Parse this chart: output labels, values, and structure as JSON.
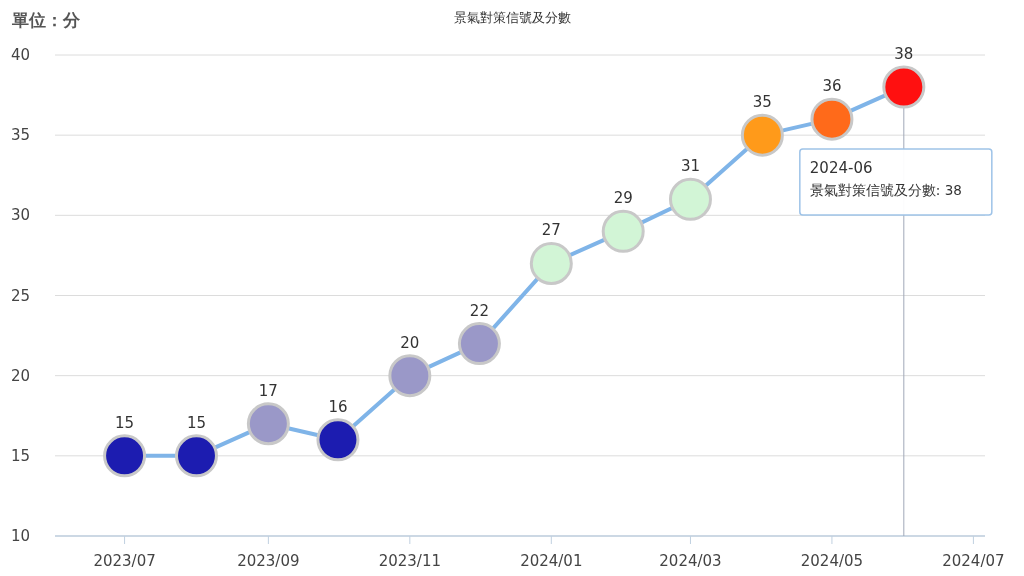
{
  "chart_data": {
    "type": "line",
    "title": "景氣對策信號及分數",
    "ylabel": "單位：分",
    "x": [
      "2023-07",
      "2023-08",
      "2023-09",
      "2023-10",
      "2023-11",
      "2023-12",
      "2024-01",
      "2024-02",
      "2024-03",
      "2024-04",
      "2024-05",
      "2024-06"
    ],
    "series": [
      {
        "color": "#7fb4e8",
        "values": [
          15,
          15,
          17,
          16,
          20,
          22,
          27,
          29,
          31,
          35,
          36,
          38
        ],
        "colors": [
          "#1c1cb0",
          "#1c1cb0",
          "#9a98c8",
          "#1c1cb0",
          "#9a98c8",
          "#9a98c8",
          "#d2f5d6",
          "#d2f5d6",
          "#d2f5d6",
          "#ff9a1a",
          "#ff6a1a",
          "#ff1010"
        ]
      }
    ],
    "xlim": [
      "2023-06",
      "2024-07-06"
    ],
    "xticks": [
      {
        "value": "2023-07",
        "label": "2023/07"
      },
      {
        "value": "2023-09",
        "label": "2023/09"
      },
      {
        "value": "2023-11",
        "label": "2023/11"
      },
      {
        "value": "2024-01",
        "label": "2024/01"
      },
      {
        "value": "2024-03",
        "label": "2024/03"
      },
      {
        "value": "2024-05",
        "label": "2024/05"
      },
      {
        "value": "2024-07",
        "label": "2024/07"
      }
    ],
    "ylim": [
      10,
      40
    ],
    "yticks": [
      10,
      15,
      20,
      25,
      30,
      35,
      40
    ],
    "grid": "y",
    "marker": "circle",
    "data_labels": true,
    "ref_lines": [
      {
        "axis": "x",
        "value": "2024-06",
        "color": "#a0a8b8"
      }
    ],
    "annotations": [
      "2024-06",
      "景氣對策信號及分數: 38"
    ]
  }
}
